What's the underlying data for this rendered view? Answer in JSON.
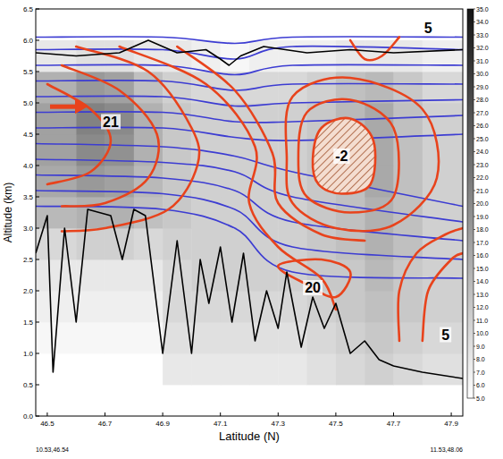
{
  "chart_data": {
    "type": "contour_section",
    "x_label": "Latitude (N)",
    "y_label": "Altitude (km)",
    "corner_labels": [
      "10.53,46.54",
      "11.53,48.06"
    ],
    "xlim": [
      46.46,
      47.94
    ],
    "ylim": [
      0,
      6.5
    ],
    "xticks": [
      46.5,
      46.7,
      46.9,
      47.1,
      47.3,
      47.5,
      47.7,
      47.9
    ],
    "yticks": [
      {
        "value": 0,
        "label": "0.0"
      },
      0.5,
      {
        "value": 1,
        "label": "1.0"
      },
      1.5,
      {
        "value": 2,
        "label": "2.0"
      },
      2.5,
      {
        "value": 3,
        "label": "3.0"
      },
      3.5,
      {
        "value": 4,
        "label": "4.0"
      },
      4.5,
      {
        "value": 5,
        "label": "5.0"
      },
      5.5,
      {
        "value": 6,
        "label": "6.0"
      },
      6.5
    ],
    "grid": false,
    "reflectivity": {
      "x_edges": [
        46.46,
        46.6,
        46.7,
        46.8,
        46.9,
        47.0,
        47.1,
        47.2,
        47.3,
        47.4,
        47.5,
        47.6,
        47.7,
        47.8,
        47.94
      ],
      "y_edges": [
        0,
        0.5,
        1.0,
        1.5,
        2.0,
        2.5,
        3.0,
        3.5,
        4.0,
        4.5,
        5.0,
        5.5,
        6.0
      ],
      "cells": [
        [
          5,
          5,
          5,
          5,
          5,
          5,
          5,
          5,
          5,
          5,
          5,
          5,
          5,
          5
        ],
        [
          5,
          5,
          5,
          5,
          8,
          8,
          8,
          8,
          8,
          9,
          10,
          11,
          10,
          9
        ],
        [
          6,
          6,
          6,
          6,
          9,
          9,
          9,
          9,
          9,
          10,
          11,
          12,
          11,
          10
        ],
        [
          7,
          7,
          7,
          7,
          10,
          10,
          10,
          10,
          10,
          11,
          12,
          13,
          12,
          11
        ],
        [
          8,
          8,
          8,
          8,
          10,
          11,
          11,
          11,
          11,
          12,
          12,
          14,
          12,
          11
        ],
        [
          10,
          11,
          11,
          10,
          11,
          11,
          11,
          11,
          11,
          12,
          13,
          15,
          13,
          11
        ],
        [
          14,
          15,
          15,
          13,
          12,
          11,
          11,
          11,
          11,
          12,
          13,
          15,
          13,
          11
        ],
        [
          16,
          18,
          17,
          14,
          12,
          11,
          11,
          11,
          11,
          12,
          13,
          16,
          13,
          11
        ],
        [
          17,
          20,
          19,
          15,
          12,
          11,
          11,
          11,
          11,
          12,
          14,
          16,
          13,
          11
        ],
        [
          17,
          21,
          20,
          15,
          12,
          11,
          11,
          11,
          11,
          12,
          14,
          16,
          13,
          11
        ],
        [
          15,
          18,
          17,
          13,
          11,
          10,
          10,
          10,
          10,
          11,
          13,
          14,
          12,
          10
        ],
        [
          8,
          9,
          9,
          8,
          8,
          7,
          6,
          7,
          7,
          7,
          8,
          8,
          8,
          7
        ]
      ],
      "zlim": [
        5,
        35
      ],
      "zticks": [
        {
          "value": 5,
          "label": "5.0"
        },
        {
          "value": 6,
          "label": "6.0"
        },
        {
          "value": 7,
          "label": "7.0"
        },
        {
          "value": 8,
          "label": "8.0"
        },
        {
          "value": 9,
          "label": "9.0"
        },
        {
          "value": 10,
          "label": "10.0"
        },
        {
          "value": 11,
          "label": "11.0"
        },
        {
          "value": 12,
          "label": "12.0"
        },
        {
          "value": 13,
          "label": "13.0"
        },
        {
          "value": 14,
          "label": "14.0"
        },
        {
          "value": 15,
          "label": "15.0"
        },
        {
          "value": 16,
          "label": "16.0"
        },
        {
          "value": 17,
          "label": "17.0"
        },
        {
          "value": 18,
          "label": "18.0"
        },
        {
          "value": 19,
          "label": "19.0"
        },
        {
          "value": 20,
          "label": "20.0"
        },
        {
          "value": 21,
          "label": "21.0"
        },
        {
          "value": 22,
          "label": "22.0"
        },
        {
          "value": 23,
          "label": "23.0"
        },
        {
          "value": 24,
          "label": "24.0"
        },
        {
          "value": 25,
          "label": "25.0"
        },
        {
          "value": 26,
          "label": "26.0"
        },
        {
          "value": 27,
          "label": "27.0"
        },
        {
          "value": 28,
          "label": "28.0"
        },
        {
          "value": 29,
          "label": "29.0"
        },
        {
          "value": 30,
          "label": "30.0"
        },
        {
          "value": 31,
          "label": "31.0"
        },
        {
          "value": 32,
          "label": "32.0"
        },
        {
          "value": 33,
          "label": "33.0"
        },
        {
          "value": 34,
          "label": "34.0"
        },
        {
          "value": 35,
          "label": "35.0"
        }
      ]
    },
    "series": [
      {
        "type": "line",
        "color": "#000000",
        "x": [
          46.46,
          46.5,
          46.52,
          46.56,
          46.6,
          46.64,
          46.72,
          46.76,
          46.8,
          46.84,
          46.9,
          46.95,
          47.0,
          47.03,
          47.06,
          47.1,
          47.14,
          47.18,
          47.22,
          47.26,
          47.3,
          47.33,
          47.38,
          47.42,
          47.46,
          47.5,
          47.55,
          47.6,
          47.65,
          47.7,
          47.8,
          47.94
        ],
        "values": [
          2.6,
          3.2,
          0.7,
          3.0,
          1.5,
          3.3,
          3.2,
          2.5,
          3.3,
          3.2,
          1.0,
          2.8,
          1.0,
          2.5,
          1.8,
          2.7,
          1.5,
          2.6,
          1.2,
          2.0,
          1.4,
          2.3,
          1.1,
          1.9,
          1.4,
          1.8,
          1.0,
          1.2,
          0.9,
          0.8,
          0.7,
          0.6
        ]
      },
      {
        "type": "line",
        "color": "#000000",
        "x": [
          46.46,
          46.6,
          46.75,
          46.85,
          46.95,
          47.05,
          47.1,
          47.13,
          47.17,
          47.25,
          47.4,
          47.55,
          47.7,
          47.94
        ],
        "values": [
          5.8,
          5.75,
          5.8,
          6.0,
          5.8,
          5.85,
          5.7,
          5.6,
          5.75,
          5.9,
          5.8,
          5.85,
          5.8,
          5.85
        ]
      },
      {
        "type": "contour",
        "color": "#3c3cd2",
        "x": [
          46.46,
          46.9,
          47.15,
          47.35,
          47.94
        ],
        "values": [
          6.05,
          6.05,
          5.95,
          6.05,
          6.05
        ]
      },
      {
        "type": "contour",
        "color": "#3c3cd2",
        "x": [
          46.46,
          46.9,
          47.15,
          47.35,
          47.94
        ],
        "values": [
          5.85,
          5.85,
          5.7,
          5.9,
          5.85
        ]
      },
      {
        "type": "contour",
        "color": "#3c3cd2",
        "x": [
          46.46,
          46.9,
          47.15,
          47.35,
          47.94
        ],
        "values": [
          5.6,
          5.6,
          5.45,
          5.6,
          5.6
        ]
      },
      {
        "type": "contour",
        "color": "#3c3cd2",
        "x": [
          46.46,
          46.9,
          47.15,
          47.35,
          47.94
        ],
        "values": [
          5.35,
          5.35,
          5.2,
          5.3,
          5.3
        ]
      },
      {
        "type": "contour",
        "color": "#3c3cd2",
        "x": [
          46.46,
          46.9,
          47.15,
          47.35,
          47.94
        ],
        "values": [
          5.1,
          5.1,
          4.95,
          5.0,
          5.05
        ]
      },
      {
        "type": "contour",
        "color": "#3c3cd2",
        "x": [
          46.46,
          46.9,
          47.15,
          47.35,
          47.94
        ],
        "values": [
          4.85,
          4.85,
          4.7,
          4.7,
          4.8
        ]
      },
      {
        "type": "contour",
        "color": "#3c3cd2",
        "x": [
          46.46,
          46.9,
          47.15,
          47.35,
          47.94
        ],
        "values": [
          4.6,
          4.6,
          4.45,
          4.4,
          4.5
        ]
      },
      {
        "type": "contour",
        "color": "#3c3cd2",
        "x": [
          46.46,
          46.9,
          47.15,
          47.35,
          47.94
        ],
        "values": [
          4.35,
          4.3,
          4.15,
          3.9,
          3.35
        ]
      },
      {
        "type": "contour",
        "color": "#3c3cd2",
        "x": [
          46.46,
          46.9,
          47.15,
          47.35,
          47.94
        ],
        "values": [
          4.1,
          4.05,
          3.9,
          3.5,
          3.1
        ]
      },
      {
        "type": "contour",
        "color": "#3c3cd2",
        "x": [
          46.46,
          46.9,
          47.15,
          47.35,
          47.94
        ],
        "values": [
          3.85,
          3.8,
          3.6,
          3.1,
          2.8
        ]
      },
      {
        "type": "contour",
        "color": "#3c3cd2",
        "x": [
          46.46,
          46.9,
          47.15,
          47.35,
          47.94
        ],
        "values": [
          3.6,
          3.55,
          3.3,
          2.7,
          2.5
        ]
      },
      {
        "type": "contour",
        "color": "#3c3cd2",
        "x": [
          46.46,
          46.9,
          47.15,
          47.35,
          47.94
        ],
        "values": [
          3.35,
          3.3,
          3.0,
          2.3,
          2.2
        ]
      },
      {
        "type": "contour",
        "color": "#e8431c",
        "x": [
          46.6,
          46.85,
          47.0,
          47.02,
          46.92,
          46.7,
          46.55
        ],
        "values": [
          5.9,
          5.5,
          4.6,
          4.0,
          3.3,
          3.0,
          2.95
        ]
      },
      {
        "type": "contour",
        "color": "#e8431c",
        "x": [
          46.55,
          46.75,
          46.88,
          46.85,
          46.7,
          46.55
        ],
        "values": [
          5.6,
          5.2,
          4.5,
          3.8,
          3.4,
          3.35
        ]
      },
      {
        "type": "contour",
        "color": "#e8431c",
        "x": [
          46.5,
          46.65,
          46.72,
          46.65,
          46.5
        ],
        "values": [
          5.3,
          4.9,
          4.4,
          3.9,
          3.7
        ]
      },
      {
        "type": "contour",
        "color": "#e8431c",
        "x": [
          46.75,
          47.05,
          47.22,
          47.2,
          47.3,
          47.45,
          47.5
        ],
        "values": [
          5.9,
          5.3,
          4.3,
          3.4,
          2.7,
          2.2,
          1.7
        ]
      },
      {
        "type": "contour",
        "color": "#e8431c",
        "x": [
          46.95,
          47.15,
          47.28,
          47.3,
          47.45,
          47.6
        ],
        "values": [
          5.9,
          5.2,
          4.2,
          3.4,
          2.9,
          2.8
        ]
      },
      {
        "type": "filled_contour",
        "color": "#e8431c",
        "x": [
          47.42,
          47.45,
          47.55,
          47.63,
          47.62,
          47.52,
          47.44,
          47.42
        ],
        "values": [
          4.1,
          4.6,
          4.75,
          4.4,
          3.7,
          3.55,
          3.7,
          4.1
        ]
      },
      {
        "type": "contour",
        "color": "#e8431c",
        "x": [
          47.37,
          47.4,
          47.55,
          47.7,
          47.7,
          47.55,
          47.4,
          47.37
        ],
        "values": [
          4.1,
          4.85,
          5.05,
          4.6,
          3.5,
          3.25,
          3.5,
          4.1
        ]
      },
      {
        "type": "contour",
        "color": "#e8431c",
        "x": [
          47.33,
          47.35,
          47.55,
          47.8,
          47.85,
          47.7,
          47.5,
          47.35,
          47.33
        ],
        "values": [
          4.1,
          5.1,
          5.4,
          4.9,
          3.8,
          3.05,
          3.0,
          3.4,
          4.1
        ]
      },
      {
        "type": "contour",
        "color": "#e8431c",
        "x": [
          47.3,
          47.4,
          47.5,
          47.55,
          47.45,
          47.3
        ],
        "values": [
          2.4,
          2.1,
          1.9,
          2.3,
          2.5,
          2.4
        ]
      },
      {
        "type": "contour",
        "color": "#e8431c",
        "x": [
          47.72,
          47.72,
          47.78,
          47.88,
          47.94
        ],
        "values": [
          1.2,
          2.0,
          2.6,
          2.9,
          3.0
        ]
      },
      {
        "type": "contour",
        "color": "#e8431c",
        "x": [
          47.8,
          47.82,
          47.9,
          47.94
        ],
        "values": [
          1.2,
          2.0,
          2.5,
          2.6
        ]
      },
      {
        "type": "contour",
        "color": "#e8431c",
        "x": [
          47.55,
          47.6,
          47.66,
          47.72
        ],
        "values": [
          6.0,
          5.7,
          5.75,
          6.05
        ]
      }
    ],
    "annotations": [
      {
        "text": "21",
        "x": 46.72,
        "y": 4.7
      },
      {
        "text": "-2",
        "x": 47.52,
        "y": 4.15
      },
      {
        "text": "20",
        "x": 47.42,
        "y": 2.05
      },
      {
        "text": "5",
        "x": 47.82,
        "y": 6.2
      },
      {
        "text": "5",
        "x": 47.88,
        "y": 1.3
      }
    ]
  }
}
